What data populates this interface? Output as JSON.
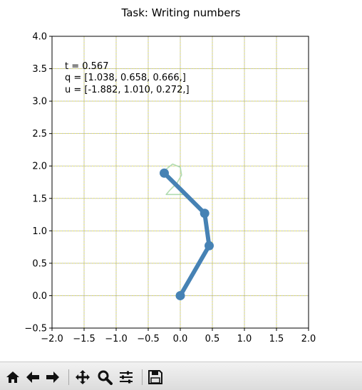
{
  "chart_data": {
    "type": "line",
    "title": "Task: Writing numbers",
    "xlim": [
      -2.0,
      2.0
    ],
    "ylim": [
      -0.5,
      4.0
    ],
    "xticks": [
      -2.0,
      -1.5,
      -1.0,
      -0.5,
      0.0,
      0.5,
      1.0,
      1.5,
      2.0
    ],
    "yticks": [
      -0.5,
      0.0,
      0.5,
      1.0,
      1.5,
      2.0,
      2.5,
      3.0,
      3.5,
      4.0
    ],
    "xtick_labels": [
      "−2.0",
      "−1.5",
      "−1.0",
      "−0.5",
      "0.0",
      "0.5",
      "1.0",
      "1.5",
      "2.0"
    ],
    "ytick_labels": [
      "−0.5",
      "0.0",
      "0.5",
      "1.0",
      "1.5",
      "2.0",
      "2.5",
      "3.0",
      "3.5",
      "4.0"
    ],
    "grid": true,
    "annotations": {
      "t": "t = 0.567",
      "q": "q = [1.038, 0.658, 0.666,]",
      "u": "u = [-1.882, 1.010, 0.272,]"
    },
    "arm": {
      "color": "#4682b4",
      "points": [
        {
          "x": 0.0,
          "y": 0.0
        },
        {
          "x": 0.45,
          "y": 0.77
        },
        {
          "x": 0.38,
          "y": 1.27
        },
        {
          "x": -0.25,
          "y": 1.89
        }
      ]
    },
    "target_digit": {
      "label": "2",
      "color": "#a8d8a8",
      "points": [
        {
          "x": -0.22,
          "y": 1.95
        },
        {
          "x": -0.12,
          "y": 2.03
        },
        {
          "x": 0.0,
          "y": 1.98
        },
        {
          "x": 0.02,
          "y": 1.86
        },
        {
          "x": -0.05,
          "y": 1.74
        },
        {
          "x": -0.16,
          "y": 1.63
        },
        {
          "x": -0.22,
          "y": 1.56
        },
        {
          "x": -0.05,
          "y": 1.56
        },
        {
          "x": 0.1,
          "y": 1.56
        }
      ]
    }
  },
  "toolbar": {
    "home_icon": "home-icon",
    "back_icon": "arrow-left-icon",
    "forward_icon": "arrow-right-icon",
    "pan_icon": "move-icon",
    "zoom_icon": "magnifier-icon",
    "configure_icon": "sliders-icon",
    "save_icon": "floppy-disk-icon"
  }
}
